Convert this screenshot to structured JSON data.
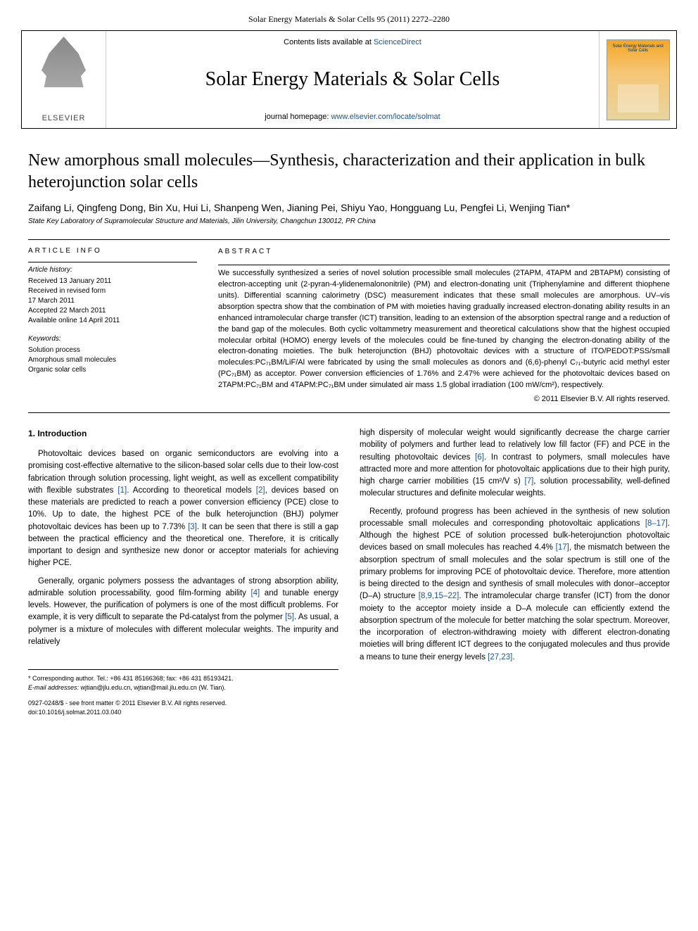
{
  "header": {
    "journal_ref": "Solar Energy Materials & Solar Cells 95 (2011) 2272–2280",
    "contents_prefix": "Contents lists available at ",
    "contents_link": "ScienceDirect",
    "journal_name": "Solar Energy Materials & Solar Cells",
    "homepage_prefix": "journal homepage: ",
    "homepage_url": "www.elsevier.com/locate/solmat",
    "publisher": "ELSEVIER",
    "cover_text": "Solar Energy Materials and Solar Cells"
  },
  "article": {
    "title": "New amorphous small molecules—Synthesis, characterization and their application in bulk heterojunction solar cells",
    "authors": "Zaifang Li, Qingfeng Dong, Bin Xu, Hui Li, Shanpeng Wen, Jianing Pei, Shiyu Yao, Hongguang Lu, Pengfei Li, Wenjing Tian*",
    "affiliation": "State Key Laboratory of Supramolecular Structure and Materials, Jilin University, Changchun 130012, PR China"
  },
  "info": {
    "label": "article info",
    "history_head": "Article history:",
    "history": "Received 13 January 2011\nReceived in revised form\n17 March 2011\nAccepted 22 March 2011\nAvailable online 14 April 2011",
    "keywords_head": "Keywords:",
    "keywords": "Solution process\nAmorphous small molecules\nOrganic solar cells"
  },
  "abstract": {
    "label": "abstract",
    "text": "We successfully synthesized a series of novel solution processible small molecules (2TAPM, 4TAPM and 2BTAPM) consisting of electron-accepting unit (2-pyran-4-ylidenemalononitrile) (PM) and electron-donating unit (Triphenylamine and different thiophene units). Differential scanning calorimetry (DSC) measurement indicates that these small molecules are amorphous. UV–vis absorption spectra show that the combination of PM with moieties having gradually increased electron-donating ability results in an enhanced intramolecular charge transfer (ICT) transition, leading to an extension of the absorption spectral range and a reduction of the band gap of the molecules. Both cyclic voltammetry measurement and theoretical calculations show that the highest occupied molecular orbital (HOMO) energy levels of the molecules could be fine-tuned by changing the electron-donating ability of the electron-donating moieties. The bulk heterojunction (BHJ) photovoltaic devices with a structure of ITO/PEDOT:PSS/small molecules:PC₇₁BM/LiF/Al were fabricated by using the small molecules as donors and (6,6)-phenyl C₇₁-butyric acid methyl ester (PC₇₁BM) as acceptor. Power conversion efficiencies of 1.76% and 2.47% were achieved for the photovoltaic devices based on 2TAPM:PC₇₁BM and 4TAPM:PC₇₁BM under simulated air mass 1.5 global irradiation (100 mW/cm²), respectively.",
    "copyright": "© 2011 Elsevier B.V. All rights reserved."
  },
  "body": {
    "heading": "1. Introduction",
    "p1a": "Photovoltaic devices based on organic semiconductors are evolving into a promising cost-effective alternative to the silicon-based solar cells due to their low-cost fabrication through solution processing, light weight, as well as excellent compatibility with flexible substrates ",
    "r1": "[1]",
    "p1b": ". According to theoretical models ",
    "r2": "[2]",
    "p1c": ", devices based on these materials are predicted to reach a power conversion efficiency (PCE) close to 10%. Up to date, the highest PCE of the bulk heterojunction (BHJ) polymer photovoltaic devices has been up to 7.73% ",
    "r3": "[3]",
    "p1d": ". It can be seen that there is still a gap between the practical efficiency and the theoretical one. Therefore, it is critically important to design and synthesize new donor or acceptor materials for achieving higher PCE.",
    "p2a": "Generally, organic polymers possess the advantages of strong absorption ability, admirable solution processability, good film-forming ability ",
    "r4": "[4]",
    "p2b": " and tunable energy levels. However, the purification of polymers is one of the most difficult problems. For example, it is very difficult to separate the Pd-catalyst from the polymer ",
    "r5": "[5]",
    "p2c": ". As usual, a polymer is a mixture of molecules with different molecular weights. The impurity and relatively",
    "p3a": "high dispersity of molecular weight would significantly decrease the charge carrier mobility of polymers and further lead to relatively low fill factor (FF) and PCE in the resulting photovoltaic devices ",
    "r6": "[6]",
    "p3b": ". In contrast to polymers, small molecules have attracted more and more attention for photovoltaic applications due to their high purity, high charge carrier mobilities (15 cm²/V s) ",
    "r7": "[7]",
    "p3c": ", solution processability, well-defined molecular structures and definite molecular weights.",
    "p4a": "Recently, profound progress has been achieved in the synthesis of new solution processable small molecules and corresponding photovoltaic applications ",
    "r8": "[8–17]",
    "p4b": ". Although the highest PCE of solution processed bulk-heterojunction photovoltaic devices based on small molecules has reached 4.4% ",
    "r9": "[17]",
    "p4c": ", the mismatch between the absorption spectrum of small molecules and the solar spectrum is still one of the primary problems for improving PCE of photovoltaic device. Therefore, more attention is being directed to the design and synthesis of small molecules with donor–acceptor (D–A) structure ",
    "r10": "[8,9,15–22]",
    "p4d": ". The intramolecular charge transfer (ICT) from the donor moiety to the acceptor moiety inside a D–A molecule can efficiently extend the absorption spectrum of the molecule for better matching the solar spectrum. Moreover, the incorporation of electron-withdrawing moiety with different electron-donating moieties will bring different ICT degrees to the conjugated molecules and thus provide a means to tune their energy levels ",
    "r11": "[27,23]",
    "p4e": "."
  },
  "footnote": {
    "corr": "* Corresponding author. Tel.: +86 431 85166368; fax: +86 431 85193421.",
    "email_label": "E-mail addresses: ",
    "emails": "wjtian@jlu.edu.cn, wjtian@mail.jlu.edu.cn (W. Tian)."
  },
  "footer": {
    "issn": "0927-0248/$ - see front matter © 2011 Elsevier B.V. All rights reserved.",
    "doi": "doi:10.1016/j.solmat.2011.03.040"
  },
  "colors": {
    "link": "#1a5490",
    "text": "#000000"
  }
}
